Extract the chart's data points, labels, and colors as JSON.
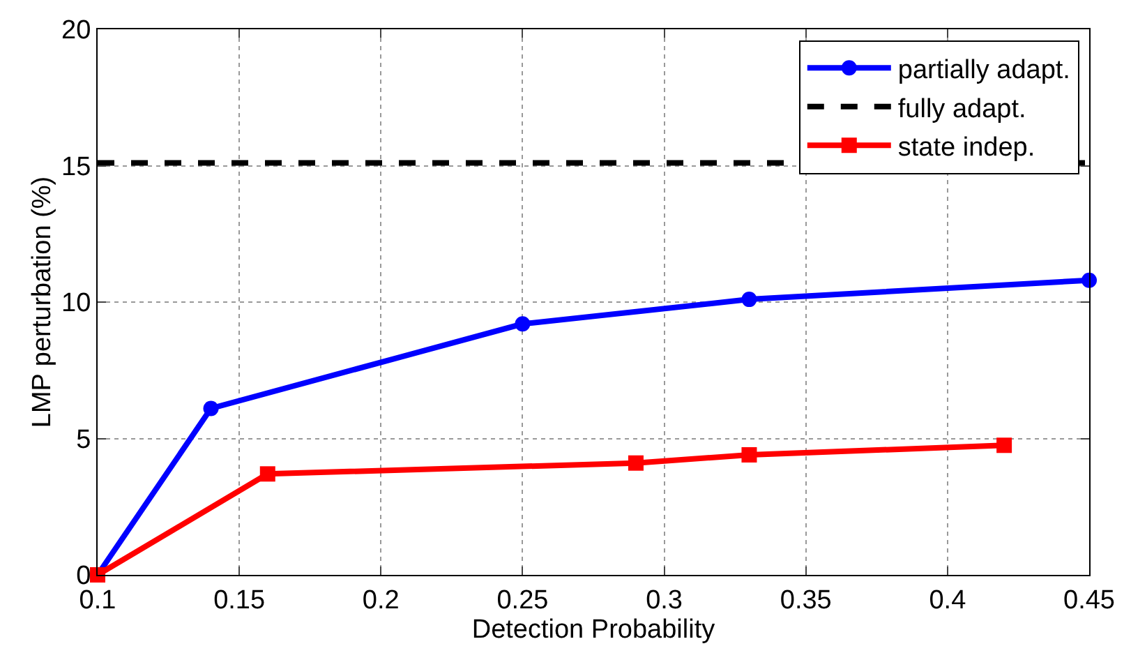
{
  "chart_data": {
    "type": "line",
    "xlabel": "Detection Probability",
    "ylabel": "LMP perturbation (%)",
    "xlim": [
      0.1,
      0.45
    ],
    "xticks": [
      0.1,
      0.15,
      0.2,
      0.25,
      0.3,
      0.35,
      0.4,
      0.45
    ],
    "ylim": [
      0,
      20
    ],
    "yticks": [
      0,
      5,
      10,
      15,
      20
    ],
    "grid": true,
    "legend": "top right",
    "series": [
      {
        "name": "partially adapt.",
        "color": "#0000ff",
        "marker": "circle",
        "line_style": "solid",
        "x": [
          0.1,
          0.14,
          0.25,
          0.33,
          0.45
        ],
        "values": [
          0,
          6.1,
          9.2,
          10.1,
          10.8
        ]
      },
      {
        "name": "fully adapt.",
        "color": "#000000",
        "marker": "none",
        "line_style": "dashed",
        "x": [
          0.1,
          0.45
        ],
        "values": [
          15.1,
          15.1
        ]
      },
      {
        "name": "state indep.",
        "color": "#ff0000",
        "marker": "square",
        "line_style": "solid",
        "x": [
          0.1,
          0.16,
          0.29,
          0.33,
          0.42
        ],
        "values": [
          0,
          3.7,
          4.1,
          4.4,
          4.75
        ]
      }
    ]
  }
}
